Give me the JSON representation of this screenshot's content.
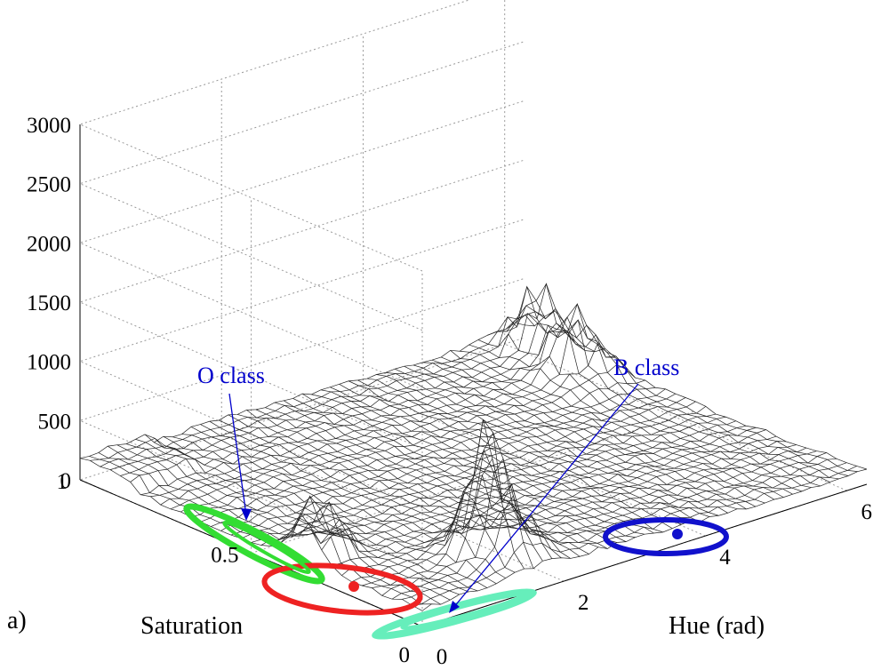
{
  "panel_label": "a)",
  "chart_data": {
    "type": "surface",
    "xlabel": "Hue  (rad)",
    "ylabel": "Saturation",
    "zlabel": "",
    "xlim": [
      0,
      6.28
    ],
    "ylim": [
      0,
      1
    ],
    "zlim": [
      0,
      3000
    ],
    "xticks": [
      "0",
      "2",
      "4",
      "6"
    ],
    "yticks": [
      "0",
      "0.5",
      "1"
    ],
    "zticks": [
      "0",
      "500",
      "1000",
      "1500",
      "2000",
      "2500",
      "3000"
    ],
    "grid": true,
    "surface_peaks": [
      {
        "hue": 0.2,
        "saturation": 0.35,
        "count": 400
      },
      {
        "hue": 1.6,
        "saturation": 0.12,
        "count": 900
      },
      {
        "hue": 6.0,
        "saturation": 0.9,
        "count": 450
      },
      {
        "hue": 5.8,
        "saturation": 0.75,
        "count": 500
      }
    ],
    "annotations": [
      {
        "text": "O class",
        "color": "#0000cc"
      },
      {
        "text": "B class",
        "color": "#0000cc"
      }
    ],
    "clusters": [
      {
        "color": "#33dd33",
        "hue_center": 0.25,
        "sat_center": 0.6,
        "has_centroid": false
      },
      {
        "color": "#ee2222",
        "hue_center": 0.45,
        "sat_center": 0.35,
        "has_centroid": true
      },
      {
        "color": "#66eebb",
        "hue_center": 1.2,
        "sat_center": 0.05,
        "has_centroid": false
      },
      {
        "color": "#1111cc",
        "hue_center": 4.6,
        "sat_center": 0.5,
        "has_centroid": true
      }
    ]
  }
}
